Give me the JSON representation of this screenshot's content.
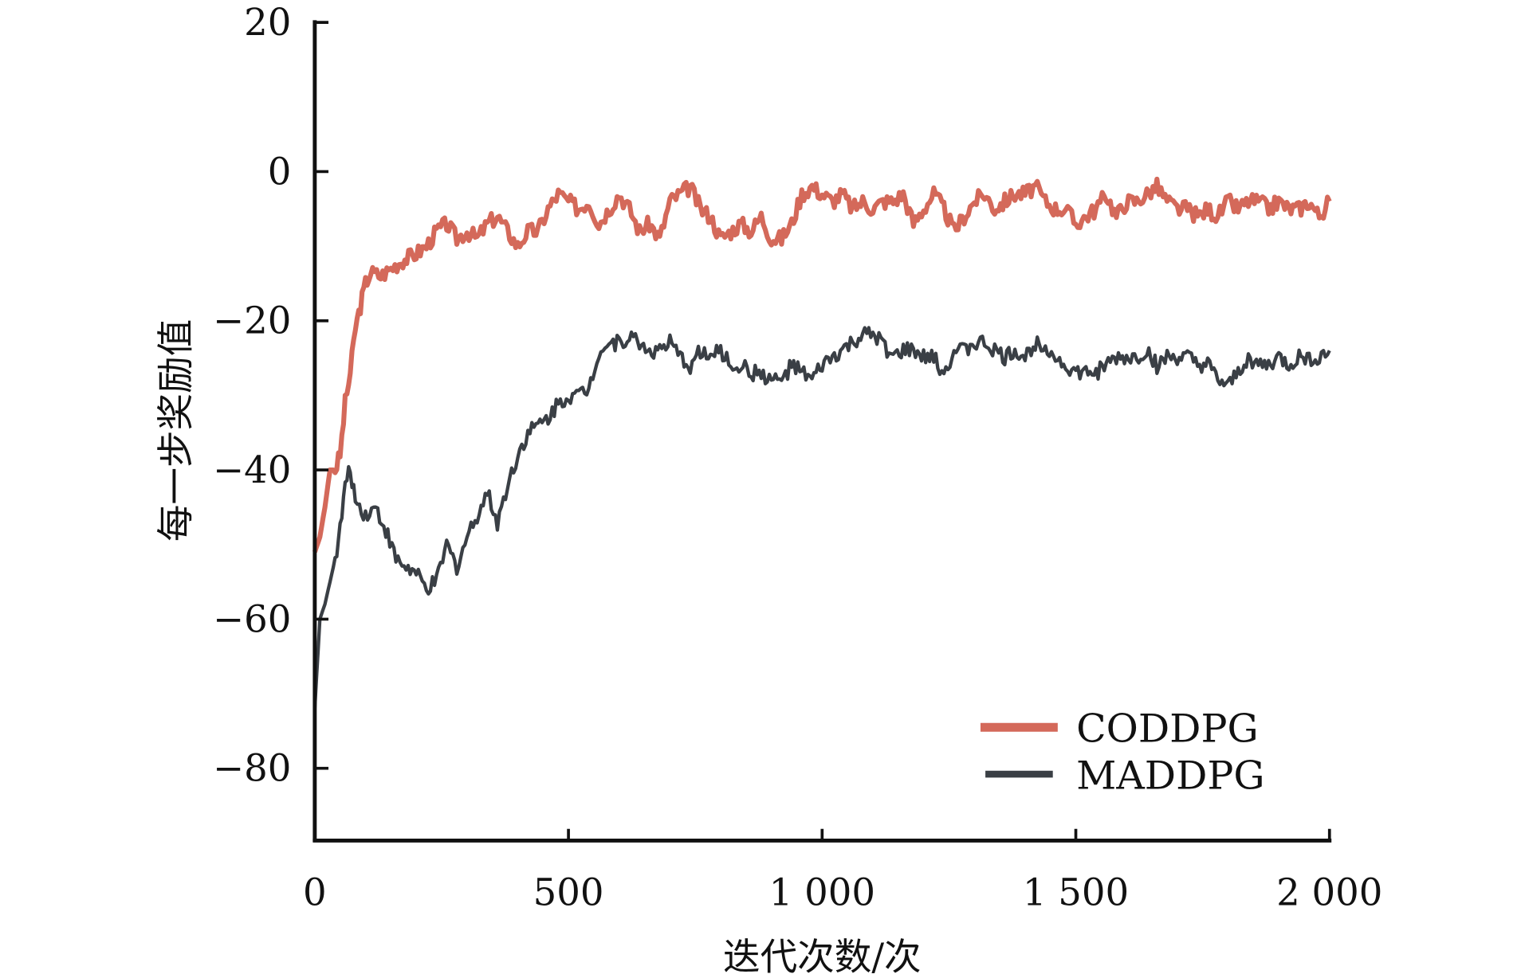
{
  "chart_data": {
    "type": "line",
    "title": "",
    "xlabel": "迭代次数/次",
    "ylabel": "每一步奖励值",
    "xlim": [
      0,
      2000
    ],
    "ylim": [
      -90,
      20
    ],
    "xticks": [
      0,
      500,
      1000,
      1500,
      2000
    ],
    "xtick_labels": [
      "0",
      "500",
      "1 000",
      "1 500",
      "2 000"
    ],
    "yticks": [
      20,
      0,
      -20,
      -40,
      -60,
      -80
    ],
    "ytick_labels": [
      "20",
      "0",
      "−20",
      "−40",
      "−60",
      "−80"
    ],
    "grid": false,
    "legend_position": "bottom-right",
    "series": [
      {
        "name": "CODDPG",
        "color": "#d4695a",
        "x": [
          0,
          10,
          20,
          30,
          40,
          50,
          60,
          70,
          80,
          90,
          100,
          110,
          130,
          150,
          170,
          200,
          220,
          240,
          260,
          280,
          300,
          320,
          340,
          360,
          380,
          400,
          420,
          440,
          460,
          480,
          500,
          520,
          540,
          560,
          580,
          600,
          620,
          640,
          660,
          680,
          700,
          720,
          740,
          760,
          780,
          800,
          820,
          840,
          860,
          880,
          900,
          920,
          940,
          960,
          980,
          1000,
          1020,
          1040,
          1060,
          1080,
          1100,
          1120,
          1140,
          1160,
          1180,
          1200,
          1220,
          1240,
          1260,
          1280,
          1300,
          1320,
          1340,
          1360,
          1380,
          1400,
          1420,
          1440,
          1460,
          1480,
          1500,
          1520,
          1540,
          1560,
          1580,
          1600,
          1620,
          1640,
          1660,
          1680,
          1700,
          1720,
          1740,
          1760,
          1780,
          1800,
          1820,
          1840,
          1860,
          1880,
          1900,
          1920,
          1940,
          1960,
          1980,
          2000
        ],
        "y": [
          -51,
          -49,
          -45,
          -40,
          -40,
          -38,
          -31,
          -27,
          -21,
          -18,
          -15,
          -13.5,
          -14,
          -13,
          -12,
          -11,
          -10,
          -8,
          -7,
          -9,
          -8,
          -9,
          -7,
          -6,
          -8,
          -10,
          -8,
          -8,
          -5,
          -3,
          -4,
          -5,
          -4,
          -7,
          -5,
          -3,
          -5,
          -8,
          -7,
          -9,
          -4,
          -3,
          -2,
          -5,
          -6,
          -9,
          -8,
          -7,
          -8,
          -6,
          -9,
          -9,
          -7,
          -3,
          -2,
          -3,
          -4,
          -3,
          -5,
          -4,
          -5,
          -4,
          -4,
          -3,
          -7,
          -5,
          -3,
          -5,
          -8,
          -6,
          -4,
          -3,
          -5,
          -4,
          -3,
          -3,
          -2,
          -4,
          -5,
          -5,
          -7,
          -6,
          -5,
          -3,
          -6,
          -4,
          -4,
          -3,
          -2,
          -4,
          -5,
          -5,
          -6,
          -5,
          -6,
          -4,
          -5,
          -4,
          -4,
          -5,
          -4,
          -5,
          -5,
          -4,
          -6,
          -4
        ]
      },
      {
        "name": "MADDPG",
        "color": "#3a3f45",
        "x": [
          0,
          10,
          20,
          30,
          40,
          50,
          60,
          70,
          80,
          100,
          120,
          140,
          160,
          180,
          200,
          220,
          240,
          260,
          280,
          300,
          320,
          340,
          360,
          380,
          400,
          420,
          440,
          460,
          480,
          500,
          520,
          540,
          560,
          580,
          600,
          620,
          640,
          660,
          680,
          700,
          720,
          740,
          760,
          780,
          800,
          820,
          840,
          860,
          880,
          900,
          920,
          940,
          960,
          980,
          1000,
          1020,
          1040,
          1060,
          1080,
          1100,
          1120,
          1140,
          1160,
          1180,
          1200,
          1220,
          1240,
          1260,
          1280,
          1300,
          1320,
          1340,
          1360,
          1380,
          1400,
          1420,
          1440,
          1460,
          1480,
          1500,
          1520,
          1540,
          1560,
          1580,
          1600,
          1620,
          1640,
          1660,
          1680,
          1700,
          1720,
          1740,
          1760,
          1780,
          1800,
          1820,
          1840,
          1860,
          1880,
          1900,
          1920,
          1940,
          1960,
          1980,
          2000
        ],
        "y": [
          -72,
          -60,
          -58,
          -55,
          -52,
          -48,
          -42,
          -40,
          -44,
          -46,
          -45,
          -48,
          -52,
          -53,
          -54,
          -56,
          -55,
          -50,
          -53,
          -49,
          -46,
          -43,
          -47,
          -42,
          -38,
          -35,
          -34,
          -33,
          -31,
          -30,
          -30,
          -29,
          -24,
          -23,
          -23,
          -22,
          -23,
          -24,
          -24,
          -23,
          -25,
          -26,
          -24,
          -25,
          -24,
          -26,
          -26,
          -27,
          -27,
          -28,
          -28,
          -26,
          -27,
          -28,
          -26,
          -25,
          -24,
          -23,
          -22,
          -22,
          -23,
          -25,
          -24,
          -24,
          -25,
          -25,
          -27,
          -24,
          -24,
          -23,
          -23,
          -24,
          -25,
          -24,
          -25,
          -23,
          -23,
          -25,
          -26,
          -27,
          -27,
          -27,
          -26,
          -25,
          -25,
          -25,
          -24,
          -26,
          -25,
          -25,
          -25,
          -26,
          -26,
          -28,
          -29,
          -27,
          -25,
          -26,
          -26,
          -25,
          -26,
          -25,
          -25,
          -25,
          -24
        ]
      }
    ]
  }
}
